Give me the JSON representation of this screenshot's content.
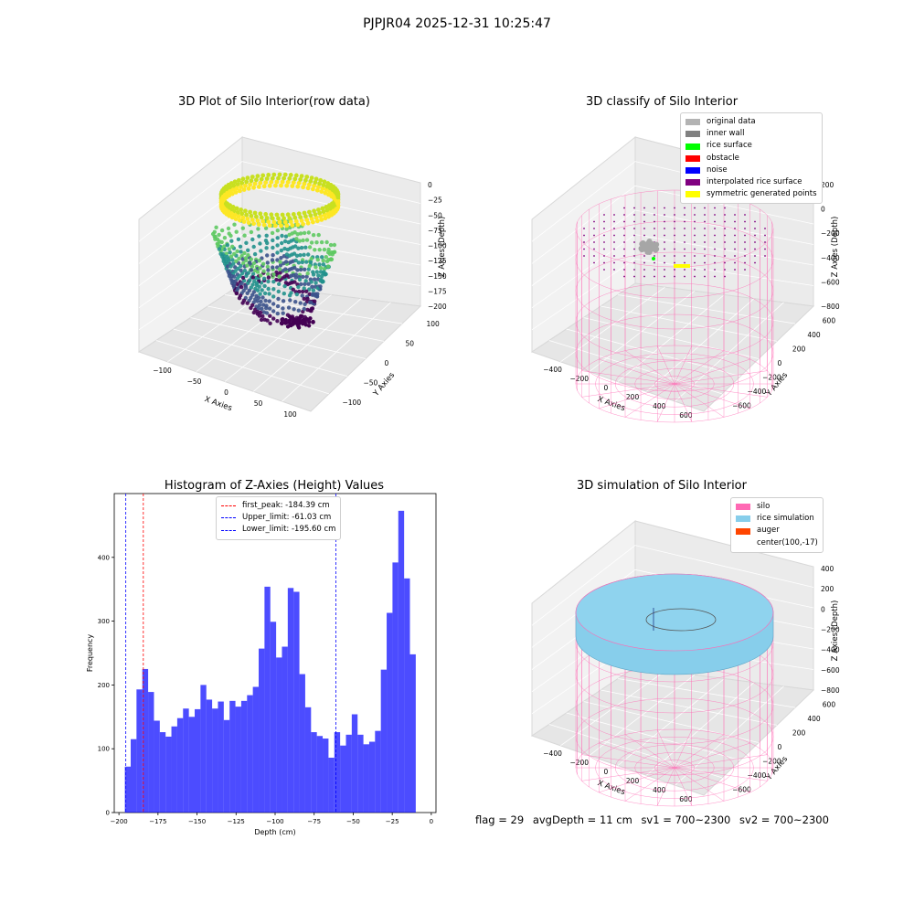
{
  "suptitle": "PJPJR04 2025-12-31 10:25:47",
  "footer": {
    "flag": "flag = 29",
    "avg_depth": "avgDepth = 11 cm",
    "sv1": "sv1 = 700~2300",
    "sv2": "sv2 = 700~2300"
  },
  "panel_raw": {
    "title": "3D Plot of Silo Interior(row data)",
    "xlabel": "X Axies",
    "ylabel": "Y Axies",
    "zlabel": "Z Axies (Depth)",
    "xticks": [
      "−100",
      "−50",
      "0",
      "50",
      "100"
    ],
    "yticks": [
      "−100",
      "−50",
      "0",
      "50",
      "100"
    ],
    "zticks": [
      "0",
      "−25",
      "−50",
      "−75",
      "−100",
      "−125",
      "−150",
      "−175",
      "−200"
    ],
    "colormap": [
      "#440154",
      "#3b528b",
      "#21918c",
      "#5ec962",
      "#fde725"
    ]
  },
  "panel_classify": {
    "title": "3D classify of Silo Interior",
    "xlabel": "X Axies",
    "ylabel": "Y Axies",
    "zlabel": "Z Axies (Depth)",
    "xticks": [
      "−400",
      "−200",
      "0",
      "200",
      "400",
      "600"
    ],
    "yticks": [
      "−600",
      "−400",
      "−200",
      "0",
      "200",
      "400",
      "600"
    ],
    "zticks": [
      "200",
      "0",
      "−200",
      "−400",
      "−600",
      "−800"
    ],
    "legend": [
      {
        "label": "original data",
        "color": "#b3b3b3"
      },
      {
        "label": "inner wall",
        "color": "#808080"
      },
      {
        "label": "rice surface",
        "color": "#00ff00"
      },
      {
        "label": "obstacle",
        "color": "#ff0000"
      },
      {
        "label": "noise",
        "color": "#0000ff"
      },
      {
        "label": "interpolated rice surface",
        "color": "#800080"
      },
      {
        "label": "symmetric generated points",
        "color": "#ffff00"
      }
    ]
  },
  "panel_sim": {
    "title": "3D simulation of Silo Interior",
    "xlabel": "X Axies",
    "ylabel": "Y Axies",
    "zlabel": "Z Axies (Depth)",
    "xticks": [
      "−400",
      "−200",
      "0",
      "200",
      "400",
      "600"
    ],
    "yticks": [
      "−600",
      "−400",
      "−200",
      "0",
      "200",
      "400",
      "600"
    ],
    "zticks": [
      "400",
      "200",
      "0",
      "−200",
      "−400",
      "−600",
      "−800"
    ],
    "legend": [
      {
        "label": "silo",
        "color": "#ff69b4"
      },
      {
        "label": "rice simulation",
        "color": "#87ceeb"
      },
      {
        "label": "auger",
        "color": "#ff4500"
      },
      {
        "label": "center(100,-17)",
        "color": ""
      }
    ]
  },
  "chart_data": {
    "type": "bar",
    "title": "Histogram of Z-Axies (Height) Values",
    "xlabel": "Depth (cm)",
    "ylabel": "Frequency",
    "xlim": [
      -203,
      3
    ],
    "ylim": [
      0,
      500
    ],
    "bar_color": "#0000ff",
    "bar_alpha": 0.7,
    "bin_start": -196.2,
    "bin_width": 3.725,
    "values": [
      72,
      115,
      193,
      225,
      189,
      144,
      126,
      119,
      135,
      148,
      163,
      150,
      162,
      200,
      177,
      163,
      174,
      145,
      175,
      166,
      175,
      184,
      197,
      257,
      354,
      299,
      243,
      260,
      352,
      346,
      217,
      165,
      126,
      120,
      116,
      86,
      126,
      105,
      122,
      154,
      122,
      107,
      111,
      128,
      224,
      313,
      392,
      473,
      367,
      248
    ],
    "xticks": [
      -200,
      -175,
      -150,
      -125,
      -100,
      -75,
      -50,
      -25,
      0
    ],
    "yticks": [
      0,
      100,
      200,
      300,
      400
    ],
    "vlines": [
      {
        "label": "first_peak: -184.39 cm",
        "x": -184.39,
        "color": "#ff0000"
      },
      {
        "label": "Upper_limit: -61.03 cm",
        "x": -61.03,
        "color": "#0000ff"
      },
      {
        "label": "Lower_limit: -195.60 cm",
        "x": -195.6,
        "color": "#0000ff"
      }
    ]
  }
}
